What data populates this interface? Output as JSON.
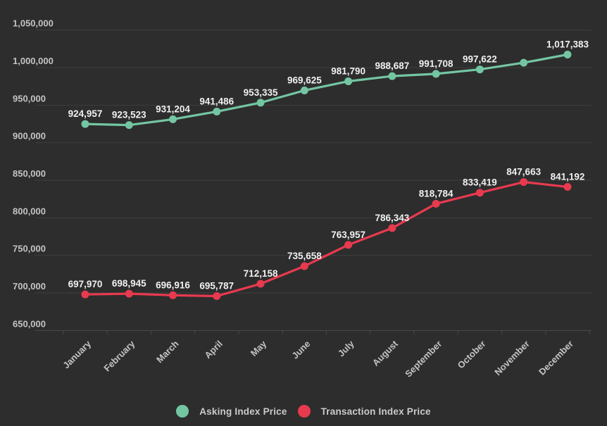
{
  "colors": {
    "background": "#2d2d2d",
    "gridline": "#3e3e3e",
    "axis_line": "#4a4a4a",
    "axis_text": "#c4c4c4",
    "data_label_text": "#f0f0f0",
    "legend_text": "#cbcbcb",
    "asking_series": "#74c6a3",
    "transaction_series": "#e83a4f"
  },
  "chart_data": {
    "type": "line",
    "categories": [
      "January",
      "February",
      "March",
      "April",
      "May",
      "June",
      "July",
      "August",
      "September",
      "October",
      "November",
      "December"
    ],
    "series": [
      {
        "name": "Asking Index Price",
        "color": "#74c6a3",
        "values": [
          924957,
          923523,
          931204,
          941486,
          953335,
          969625,
          981790,
          988687,
          991708,
          997622,
          1006500,
          1017383
        ],
        "labels": [
          "924,957",
          "923,523",
          "931,204",
          "941,486",
          "953,335",
          "969,625",
          "981,790",
          "988,687",
          "991,708",
          "997,622",
          "",
          "1,017,383"
        ]
      },
      {
        "name": "Transaction Index Price",
        "color": "#e83a4f",
        "values": [
          697970,
          698945,
          696916,
          695787,
          712158,
          735658,
          763957,
          786343,
          818784,
          833419,
          847663,
          841192
        ],
        "labels": [
          "697,970",
          "698,945",
          "696,916",
          "695,787",
          "712,158",
          "735,658",
          "763,957",
          "786,343",
          "818,784",
          "833,419",
          "847,663",
          "841,192"
        ]
      }
    ],
    "ylim": [
      650000,
      1050000
    ],
    "ytick_step": 50000,
    "ytick_labels": [
      "1,050,000",
      "1,000,000",
      "950,000",
      "900,000",
      "850,000",
      "800,000",
      "750,000",
      "700,000",
      "650,000"
    ],
    "grid": true,
    "legend_position": "bottom"
  },
  "legend": {
    "items": [
      {
        "label": "Asking Index Price"
      },
      {
        "label": "Transaction Index Price"
      }
    ]
  }
}
